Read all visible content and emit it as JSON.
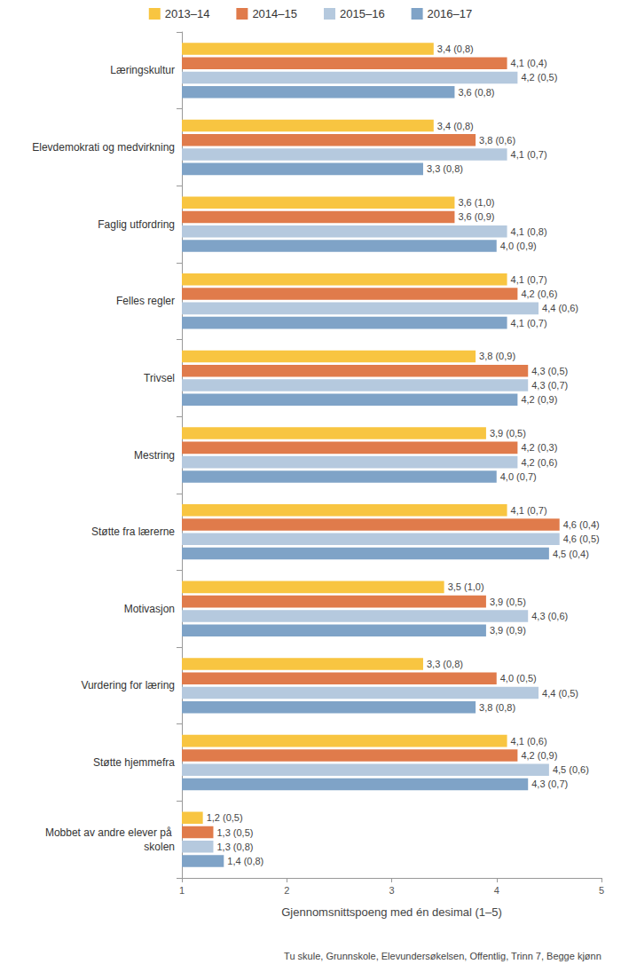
{
  "chart_data": {
    "type": "bar",
    "orientation": "horizontal",
    "categories": [
      "Læringskultur",
      "Elevdemokrati og medvirkning",
      "Faglig utfordring",
      "Felles regler",
      "Trivsel",
      "Mestring",
      "Støtte fra lærerne",
      "Motivasjon",
      "Vurdering for læring",
      "Støtte hjemmefra",
      "Mobbet av andre elever på skolen"
    ],
    "series": [
      {
        "name": "2013–14",
        "color": "#f8c541",
        "values": [
          3.4,
          3.4,
          3.6,
          4.1,
          3.8,
          3.9,
          4.1,
          3.5,
          3.3,
          4.1,
          1.2
        ],
        "value_labels": [
          "3,4 (0,8)",
          "3,4 (0,8)",
          "3,6 (1,0)",
          "4,1 (0,7)",
          "3,8 (0,9)",
          "3,9 (0,5)",
          "4,1 (0,7)",
          "3,5 (1,0)",
          "3,3 (0,8)",
          "4,1 (0,6)",
          "1,2 (0,5)"
        ]
      },
      {
        "name": "2014–15",
        "color": "#e07b4b",
        "values": [
          4.1,
          3.8,
          3.6,
          4.2,
          4.3,
          4.2,
          4.6,
          3.9,
          4.0,
          4.2,
          1.3
        ],
        "value_labels": [
          "4,1 (0,4)",
          "3,8 (0,6)",
          "3,6 (0,9)",
          "4,2 (0,6)",
          "4,3 (0,5)",
          "4,2 (0,3)",
          "4,6 (0,4)",
          "3,9 (0,5)",
          "4,0 (0,5)",
          "4,2 (0,9)",
          "1,3 (0,5)"
        ]
      },
      {
        "name": "2015–16",
        "color": "#b5c9de",
        "values": [
          4.2,
          4.1,
          4.1,
          4.4,
          4.3,
          4.2,
          4.6,
          4.3,
          4.4,
          4.5,
          1.3
        ],
        "value_labels": [
          "4,2 (0,5)",
          "4,1 (0,7)",
          "4,1 (0,8)",
          "4,4 (0,6)",
          "4,3 (0,7)",
          "4,2 (0,6)",
          "4,6 (0,5)",
          "4,3 (0,6)",
          "4,4 (0,5)",
          "4,5 (0,6)",
          "1,3 (0,8)"
        ]
      },
      {
        "name": "2016–17",
        "color": "#7fa3c7",
        "values": [
          3.6,
          3.3,
          4.0,
          4.1,
          4.2,
          4.0,
          4.5,
          3.9,
          3.8,
          4.3,
          1.4
        ],
        "value_labels": [
          "3,6 (0,8)",
          "3,3 (0,8)",
          "4,0 (0,9)",
          "4,1 (0,7)",
          "4,2 (0,9)",
          "4,0 (0,7)",
          "4,5 (0,4)",
          "3,9 (0,9)",
          "3,8 (0,8)",
          "4,3 (0,7)",
          "1,4 (0,8)"
        ]
      }
    ],
    "xlabel": "Gjennomsnittspoeng med én desimal (1–5)",
    "xlim": [
      1,
      5
    ],
    "xticks": [
      1,
      2,
      3,
      4,
      5
    ],
    "annotation": "Tu skule, Grunnskole, Elevundersøkelsen, Offentlig, Trinn 7, Begge kjønn",
    "legend": "top",
    "grid": false,
    "data_labels": true
  }
}
